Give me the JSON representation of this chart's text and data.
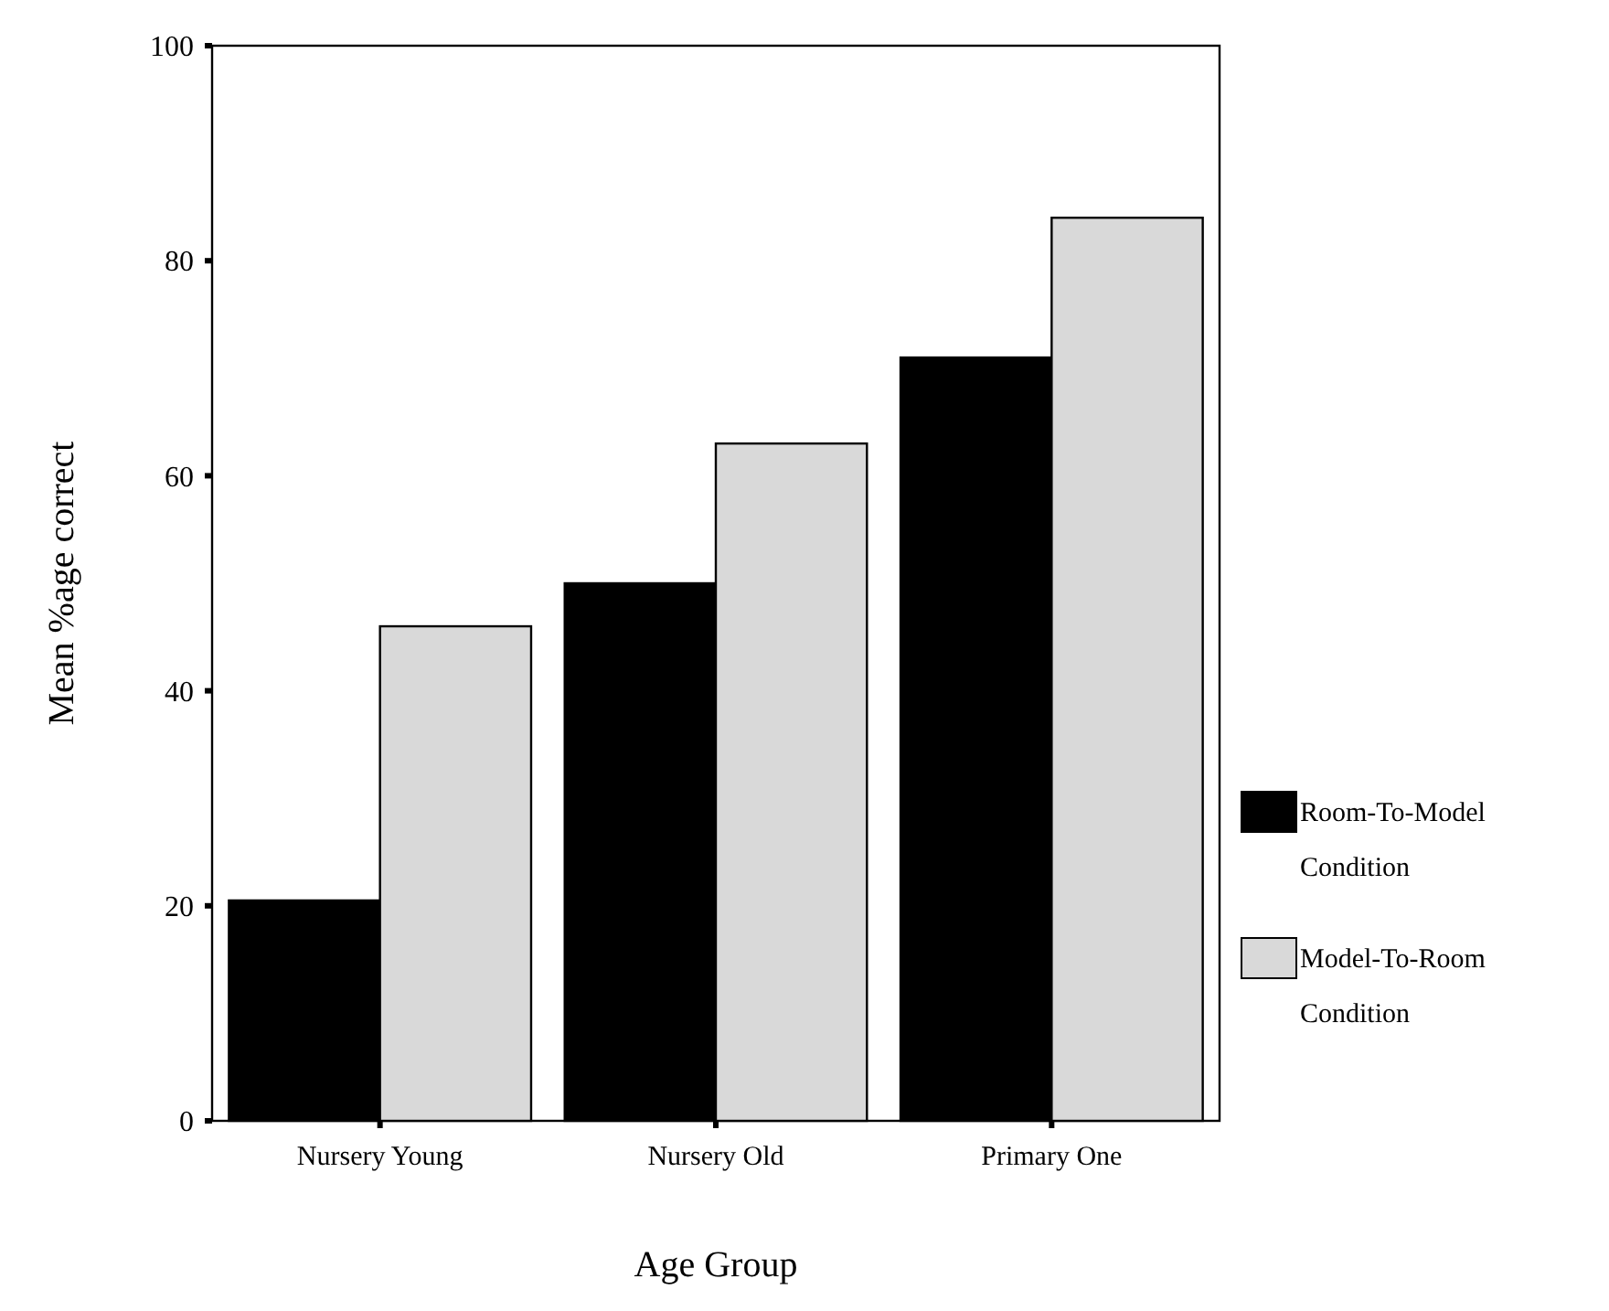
{
  "chart_data": {
    "type": "bar",
    "xlabel": "Age Group",
    "ylabel": "Mean %age correct",
    "categories": [
      "Nursery Young",
      "Nursery Old",
      "Primary One"
    ],
    "series": [
      {
        "name": "Room-To-Model Condition",
        "color": "#000000",
        "values": [
          20.5,
          50,
          71
        ]
      },
      {
        "name": "Model-To-Room Condition",
        "color": "#d9d9d9",
        "values": [
          46,
          63,
          84
        ]
      }
    ],
    "ylim": [
      0,
      100
    ],
    "yticks": [
      0,
      20,
      40,
      60,
      80,
      100
    ],
    "legend": "right"
  }
}
